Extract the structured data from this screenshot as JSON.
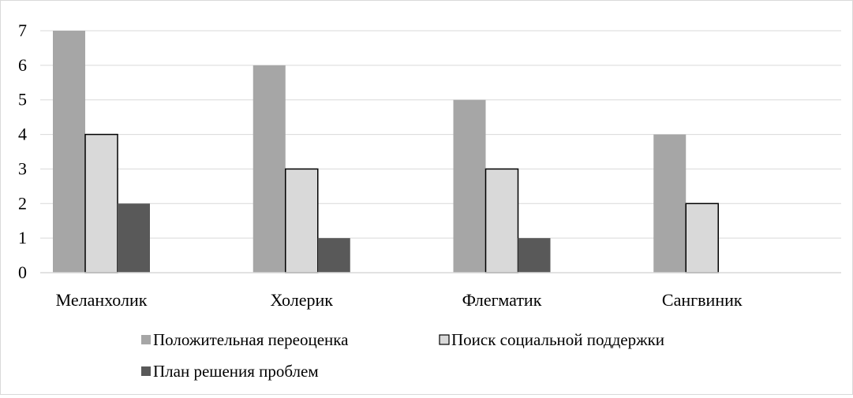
{
  "chart_data": {
    "type": "bar",
    "title": "",
    "xlabel": "",
    "ylabel": "",
    "categories": [
      "Меланхолик",
      "Холерик",
      "Флегматик",
      "Сангвиник"
    ],
    "series": [
      {
        "name": "Положительная переоценка",
        "values": [
          7,
          6,
          5,
          4
        ],
        "color": "#a6a6a6",
        "outlined": false
      },
      {
        "name": "Поиск социальной поддержки",
        "values": [
          4,
          3,
          3,
          2
        ],
        "color": "#d9d9d9",
        "outlined": true
      },
      {
        "name": "План решения проблем",
        "values": [
          2,
          1,
          1,
          0
        ],
        "color": "#595959",
        "outlined": false
      }
    ],
    "ylim": [
      0,
      7
    ],
    "yticks": [
      0,
      1,
      2,
      3,
      4,
      5,
      6,
      7
    ],
    "grid": true,
    "legend_position": "bottom",
    "outline_color": "#000000",
    "grid_color": "#d9d9d9"
  }
}
